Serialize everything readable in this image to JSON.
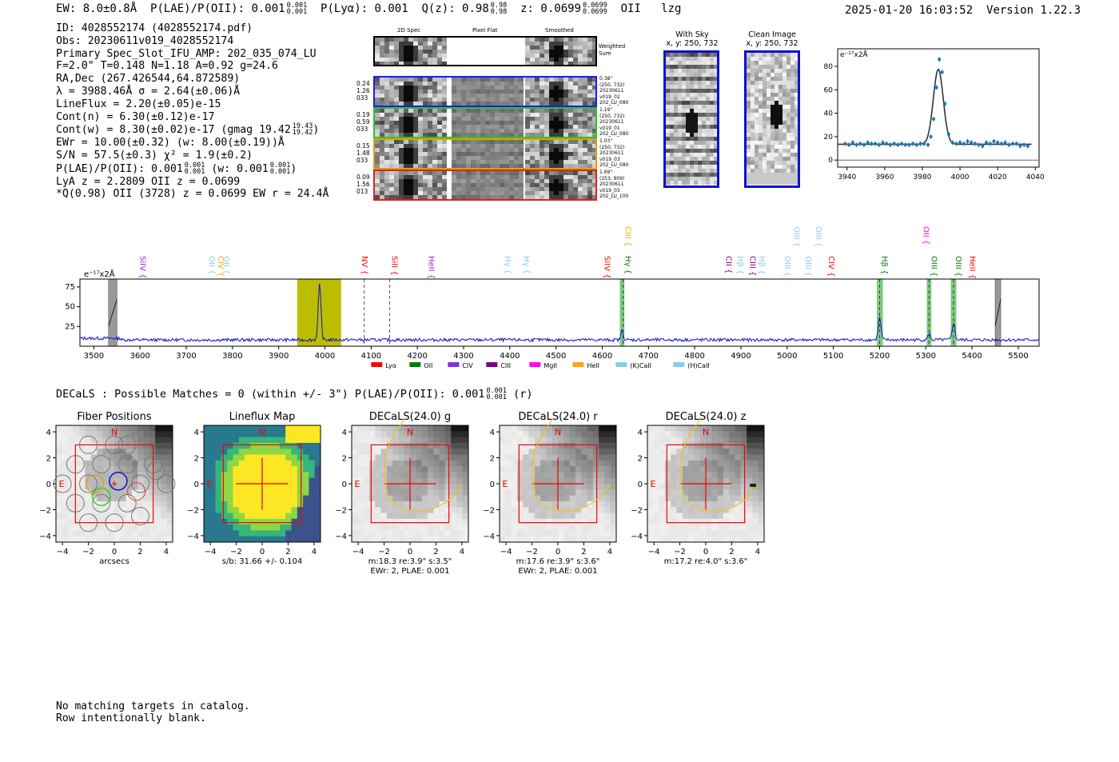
{
  "header": {
    "ew": "EW: 8.0±0.8Å",
    "plae_label": "P(LAE)/P(OII): 0.001",
    "plae_hi": "0.001",
    "plae_lo": "0.001",
    "plya": "P(Lyα): 0.001",
    "qz_label": "Q(z): 0.98",
    "qz_hi": "0.98",
    "qz_lo": "0.98",
    "z_label": "z: 0.0699",
    "z_hi": "0.0699",
    "z_lo": "0.0699",
    "line": "OII",
    "tag": "lzg",
    "datetime": "2025-01-20 16:03:52",
    "version": "Version 1.22.3"
  },
  "info": {
    "id": "ID: 4028552174 (4028552174.pdf)",
    "obs": "Obs: 20230611v019_4028552174",
    "primary": "Primary Spec_Slot_IFU_AMP: 202_035_074_LU",
    "fit": "F=2.0\"  T=0.148  N=1.18  A=0.92  g=24.6",
    "radec": "RA,Dec (267.426544,64.872589)",
    "lambda": "λ = 3988.46Å  σ = 2.64(±0.06)Å",
    "lineflux": "LineFlux = 2.20(±0.05)e-15",
    "contn": "Cont(n) = 6.30(±0.12)e-17",
    "contw": "Cont(w) = 8.30(±0.02)e-17 (gmag 19.42",
    "contw_hi": "19.43",
    "contw_lo": "19.42",
    "contw_end": ")",
    "ewr": "EWr = 10.00(±0.32) (w: 8.00(±0.19))Å",
    "sn": "S/N = 57.5(±0.3)  χ² = 1.9(±0.2)",
    "plae": "P(LAE)/P(OII): 0.001",
    "plae_hi": "0.001",
    "plae_lo": "0.001",
    "plae_w": "(w: 0.001",
    "plae_w_hi": "0.001",
    "plae_w_lo": "0.001",
    "plae_w_end": ")",
    "lya": "LyA z = 2.2809  OII z = 0.0699",
    "q": "*Q(0.98) OII (3728) z = 0.0699  EW r = 24.4Å"
  },
  "cutouts": {
    "col_2d": "2D Spec",
    "col_flat": "Pixel Flat",
    "col_smooth": "Smoothed",
    "weighted": "Weighted\nSum",
    "rows": [
      {
        "left": [
          "0.24",
          "1.26",
          "033"
        ],
        "right": [
          "0.38\"",
          "(250, 732)",
          "20230611",
          "v019_02",
          "202_LU_080"
        ],
        "color": "#1a1aff"
      },
      {
        "left": [
          "0.19",
          "0.59",
          "033"
        ],
        "right": [
          "1.19\"",
          "(250, 732)",
          "20230611",
          "v019_01",
          "202_LU_080"
        ],
        "color": "#22cc22"
      },
      {
        "left": [
          "0.15",
          "1.48",
          "033"
        ],
        "right": [
          "1.03\"",
          "(250, 732)",
          "20230611",
          "v019_03",
          "202_LU_080"
        ],
        "color": "#e0a000"
      },
      {
        "left": [
          "0.09",
          "1.56",
          "013"
        ],
        "right": [
          "1.69\"",
          "(253, 909)",
          "20230611",
          "v019_03",
          "202_LU_100"
        ],
        "color": "#e02020"
      }
    ]
  },
  "sky": {
    "with_sky_title": "With Sky",
    "with_sky_xy": "x, y: 250, 732",
    "clean_title": "Clean Image",
    "clean_xy": "x, y: 250, 732"
  },
  "zoom_fit": {
    "ylabel": "e⁻¹⁷x2Å",
    "xticks": [
      "3940",
      "3960",
      "3980",
      "4000",
      "4020",
      "4040"
    ],
    "yticks": [
      "0",
      "20",
      "40",
      "60",
      "80"
    ],
    "xlim": [
      3935,
      4042
    ],
    "ylim": [
      -6,
      95
    ],
    "points_x": [
      3939,
      3941,
      3943,
      3945,
      3947,
      3949,
      3951,
      3953,
      3955,
      3957,
      3959,
      3961,
      3963,
      3965,
      3967,
      3969,
      3971,
      3973,
      3975,
      3977,
      3979,
      3981,
      3983,
      3984.5,
      3986,
      3987.5,
      3989,
      3990.5,
      3992,
      3994,
      3996,
      3998,
      4000,
      4002,
      4004,
      4006,
      4008,
      4010,
      4012,
      4014,
      4016,
      4018,
      4020,
      4022,
      4024,
      4026,
      4028,
      4030,
      4032,
      4034,
      4036
    ],
    "points_y": [
      14,
      13,
      15,
      13,
      14,
      13,
      15,
      14,
      14,
      13,
      15,
      14,
      13,
      14,
      13,
      14,
      13,
      13,
      14,
      13,
      14,
      14,
      13,
      20,
      35,
      62,
      86,
      75,
      48,
      22,
      15,
      14,
      15,
      14,
      16,
      15,
      14,
      13,
      12,
      15,
      14,
      16,
      15,
      14,
      15,
      13,
      14,
      14,
      12,
      13,
      12
    ],
    "fit_center": 3988.46,
    "fit_sigma": 2.64,
    "fit_amp": 64,
    "fit_cont": 13.5
  },
  "spectrum": {
    "ylabel": "e⁻¹⁷x2Å",
    "xticks": [
      "3500",
      "3600",
      "3700",
      "3800",
      "3900",
      "4000",
      "4100",
      "4200",
      "4300",
      "4400",
      "4500",
      "4600",
      "4700",
      "4800",
      "4900",
      "5000",
      "5100",
      "5200",
      "5300",
      "5400",
      "5500"
    ],
    "yticks": [
      "25",
      "50",
      "75"
    ],
    "xlim": [
      3470,
      5545
    ],
    "ylim": [
      0,
      85
    ],
    "continuum": 8,
    "peaks": [
      {
        "w": 3988.46,
        "amp": 70,
        "sig": 3
      },
      {
        "w": 4643,
        "amp": 12,
        "sig": 2.5
      },
      {
        "w": 5200,
        "amp": 28,
        "sig": 3
      },
      {
        "w": 5307,
        "amp": 8,
        "sig": 2.5
      },
      {
        "w": 5360,
        "amp": 22,
        "sig": 3
      }
    ],
    "line_labels": [
      {
        "name": "SiIV {",
        "w": 3595,
        "color": "#8a2be2"
      },
      {
        "name": "OII {",
        "w": 3745,
        "color": "#87ceeb"
      },
      {
        "name": "CIV {",
        "w": 3764,
        "color": "#ffa500"
      },
      {
        "name": "OII {",
        "w": 3776,
        "color": "#87ceeb"
      },
      {
        "name": "NV {",
        "w": 4075,
        "color": "#ff0000"
      },
      {
        "name": "SiII {",
        "w": 4140,
        "color": "#ff0000"
      },
      {
        "name": "HeII {",
        "w": 4220,
        "color": "#8a2be2"
      },
      {
        "name": "Hγ {",
        "w": 4385,
        "color": "#87ceeb"
      },
      {
        "name": "Hγ {",
        "w": 4425,
        "color": "#87ceeb"
      },
      {
        "name": "SiIV {",
        "w": 4600,
        "color": "#ff0000"
      },
      {
        "name": "CIII {",
        "w": 4645,
        "color": "#ffa500"
      },
      {
        "name": "Hγ {",
        "w": 4645,
        "color": "#008000"
      },
      {
        "name": "CII {",
        "w": 4863,
        "color": "#800080"
      },
      {
        "name": "Hβ {",
        "w": 4888,
        "color": "#87ceeb"
      },
      {
        "name": "CIII {",
        "w": 4915,
        "color": "#800080"
      },
      {
        "name": "Hβ {",
        "w": 4935,
        "color": "#87ceeb"
      },
      {
        "name": "OIII {",
        "w": 4990,
        "color": "#87ceeb"
      },
      {
        "name": "OIII {",
        "w": 5035,
        "color": "#87ceeb"
      },
      {
        "name": "OIII {",
        "w": 5010,
        "color": "#87ceeb"
      },
      {
        "name": "OIII {",
        "w": 5057,
        "color": "#87ceeb"
      },
      {
        "name": "CIV {",
        "w": 5085,
        "color": "#ff0000"
      },
      {
        "name": "Hβ {",
        "w": 5200,
        "color": "#008000"
      },
      {
        "name": "OII {",
        "w": 5290,
        "color": "#ff00ff"
      },
      {
        "name": "OIII {",
        "w": 5307,
        "color": "#008000"
      },
      {
        "name": "OIII {",
        "w": 5360,
        "color": "#008000"
      },
      {
        "name": "HeII {",
        "w": 5390,
        "color": "#ff0000"
      }
    ],
    "legend": [
      {
        "label": "Lyα",
        "color": "#ff0000"
      },
      {
        "label": "OII",
        "color": "#008000"
      },
      {
        "label": "CIV",
        "color": "#8a2be2"
      },
      {
        "label": "CIII",
        "color": "#800080"
      },
      {
        "label": "MgII",
        "color": "#ff00ff"
      },
      {
        "label": "HeII",
        "color": "#ffa500"
      },
      {
        "label": "(K)CaII",
        "color": "#87ceeb"
      },
      {
        "label": "(H)CaII",
        "color": "#87ceeb"
      }
    ]
  },
  "decals": {
    "summary": "DECaLS : Possible Matches = 0 (within +/- 3\")  P(LAE)/P(OII): 0.001",
    "summary_hi": "0.001",
    "summary_lo": "0.001",
    "summary_end": "(r)",
    "panels": [
      {
        "title": "Fiber Positions",
        "compass_n": "N",
        "compass_e": "E",
        "xlabel": "arcsecs",
        "notes": []
      },
      {
        "title": "Lineflux Map",
        "compass_n": "N",
        "compass_e": "E",
        "xlabel": "s/b: 31.66 +/- 0.104",
        "notes": []
      },
      {
        "title": "DECaLS(24.0) g",
        "compass_n": "N",
        "compass_e": "E",
        "xlabel": "m:18.3  re:3.9\"  s:3.5\"",
        "notes": [
          "EWr: 2, PLAE: 0.001"
        ]
      },
      {
        "title": "DECaLS(24.0) r",
        "compass_n": "N",
        "compass_e": "E",
        "xlabel": "m:17.6  re:3.9\"  s:3.6\"",
        "notes": [
          "EWr: 2, PLAE: 0.001"
        ]
      },
      {
        "title": "DECaLS(24.0) z",
        "compass_n": "N",
        "compass_e": "E",
        "xlabel": "m:17.2  re:4.0\"  s:3.6\"",
        "notes": []
      }
    ],
    "axis_ticks": [
      "−4",
      "−2",
      "0",
      "2",
      "4"
    ]
  },
  "footer": {
    "line1": "No matching targets in catalog.",
    "line2": "Row intentionally blank."
  }
}
